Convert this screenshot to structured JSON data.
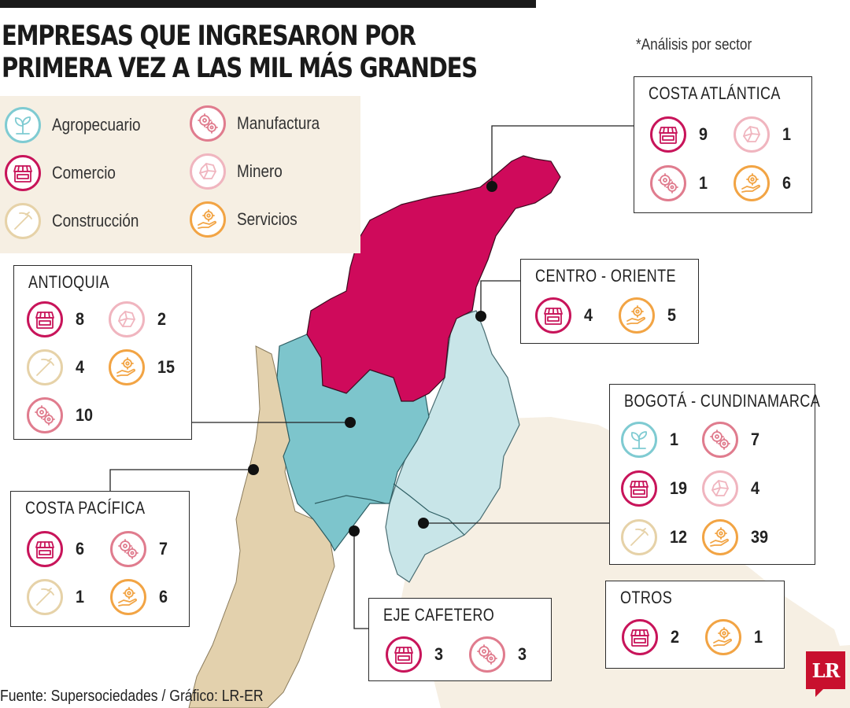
{
  "title": {
    "line1": "EMPRESAS QUE INGRESARON POR",
    "line2": "PRIMERA VEZ A LAS MIL MÁS GRANDES"
  },
  "note": "*Análisis por sector",
  "legend": {
    "items": [
      {
        "key": "agro",
        "label": "Agropecuario",
        "icon": "sprout-icon"
      },
      {
        "key": "com",
        "label": "Comercio",
        "icon": "storefront-icon"
      },
      {
        "key": "cons",
        "label": "Construcción",
        "icon": "pickaxe-icon"
      },
      {
        "key": "man",
        "label": "Manufactura",
        "icon": "gears-icon"
      },
      {
        "key": "min",
        "label": "Minero",
        "icon": "mineral-rock-icon"
      },
      {
        "key": "ser",
        "label": "Servicios",
        "icon": "hand-gear-icon"
      }
    ]
  },
  "colors": {
    "agro": "#7fcbd2",
    "com": "#c8145a",
    "cons": "#e6d2a8",
    "man": "#e07c8e",
    "min": "#f0b5bf",
    "ser": "#f2a444",
    "region_costa_atlantica": "#cf0a5b",
    "region_antioquia": "#7dc5cc",
    "region_centro_oriente": "#c8e5e8",
    "region_costa_pacifica": "#e3d1ad",
    "region_other_land": "#f6efe3"
  },
  "regions": {
    "costa_atlantica": {
      "name": "COSTA ATLÁNTICA",
      "sectors": [
        {
          "key": "com",
          "value": "9"
        },
        {
          "key": "min",
          "value": "1"
        },
        {
          "key": "man",
          "value": "1"
        },
        {
          "key": "ser",
          "value": "6"
        }
      ]
    },
    "antioquia": {
      "name": "ANTIOQUIA",
      "sectors": [
        {
          "key": "com",
          "value": "8"
        },
        {
          "key": "min",
          "value": "2"
        },
        {
          "key": "cons",
          "value": "4"
        },
        {
          "key": "ser",
          "value": "15"
        },
        {
          "key": "man",
          "value": "10"
        }
      ]
    },
    "centro_oriente": {
      "name": "CENTRO - ORIENTE",
      "sectors": [
        {
          "key": "com",
          "value": "4"
        },
        {
          "key": "ser",
          "value": "5"
        }
      ]
    },
    "bogota": {
      "name": "BOGOTÁ - CUNDINAMARCA",
      "sectors": [
        {
          "key": "agro",
          "value": "1"
        },
        {
          "key": "man",
          "value": "7"
        },
        {
          "key": "com",
          "value": "19"
        },
        {
          "key": "min",
          "value": "4"
        },
        {
          "key": "cons",
          "value": "12"
        },
        {
          "key": "ser",
          "value": "39"
        }
      ]
    },
    "costa_pacifica": {
      "name": "COSTA PACÍFICA",
      "sectors": [
        {
          "key": "com",
          "value": "6"
        },
        {
          "key": "man",
          "value": "7"
        },
        {
          "key": "cons",
          "value": "1"
        },
        {
          "key": "ser",
          "value": "6"
        }
      ]
    },
    "eje_cafetero": {
      "name": "EJE CAFETERO",
      "sectors": [
        {
          "key": "com",
          "value": "3"
        },
        {
          "key": "man",
          "value": "3"
        }
      ]
    },
    "otros": {
      "name": "OTROS",
      "sectors": [
        {
          "key": "com",
          "value": "2"
        },
        {
          "key": "ser",
          "value": "1"
        }
      ]
    }
  },
  "source": "Fuente: Supersociedades / Gráfico: LR-ER",
  "logo": "LR"
}
